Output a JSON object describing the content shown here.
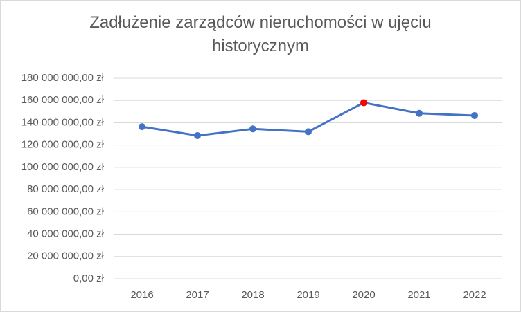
{
  "chart_data": {
    "type": "line",
    "title": "Zadłużenie zarządców nieruchomości w ujęciu historycznym",
    "categories": [
      "2016",
      "2017",
      "2018",
      "2019",
      "2020",
      "2021",
      "2022"
    ],
    "series": [
      {
        "color": "#4472c4",
        "values": [
          136500000,
          128500000,
          134500000,
          132000000,
          158000000,
          148500000,
          146500000
        ],
        "marker_colors": [
          "#4472c4",
          "#4472c4",
          "#4472c4",
          "#4472c4",
          "#ff0000",
          "#4472c4",
          "#4472c4"
        ]
      }
    ],
    "ylim": [
      0,
      180000000
    ],
    "yticks": [
      {
        "value": 0,
        "label": "0,00 zł"
      },
      {
        "value": 20000000,
        "label": "20 000 000,00 zł"
      },
      {
        "value": 40000000,
        "label": "40 000 000,00 zł"
      },
      {
        "value": 60000000,
        "label": "60 000 000,00 zł"
      },
      {
        "value": 80000000,
        "label": "80 000 000,00 zł"
      },
      {
        "value": 100000000,
        "label": "100 000 000,00 zł"
      },
      {
        "value": 120000000,
        "label": "120 000 000,00 zł"
      },
      {
        "value": 140000000,
        "label": "140 000 000,00 zł"
      },
      {
        "value": 160000000,
        "label": "160 000 000,00 zł"
      },
      {
        "value": 180000000,
        "label": "180 000 000,00 zł"
      }
    ],
    "grid": true
  }
}
